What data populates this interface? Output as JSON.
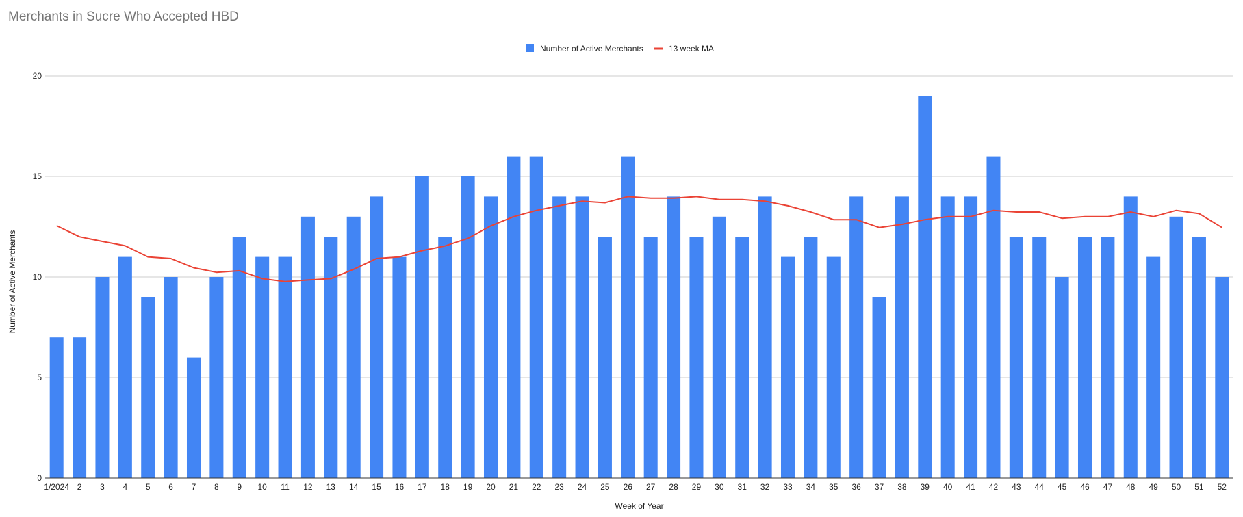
{
  "chart_data": {
    "type": "bar",
    "title": "Merchants in Sucre Who Accepted HBD",
    "xlabel": "Week of Year",
    "ylabel": "Number of Active Merchants",
    "ylim": [
      0,
      20
    ],
    "yticks": [
      0,
      5,
      10,
      15,
      20
    ],
    "grid": true,
    "legend_position": "top",
    "categories": [
      "1/2024",
      "2",
      "3",
      "4",
      "5",
      "6",
      "7",
      "8",
      "9",
      "10",
      "11",
      "12",
      "13",
      "14",
      "15",
      "16",
      "17",
      "18",
      "19",
      "20",
      "21",
      "22",
      "23",
      "24",
      "25",
      "26",
      "27",
      "28",
      "29",
      "30",
      "31",
      "32",
      "33",
      "34",
      "35",
      "36",
      "37",
      "38",
      "39",
      "40",
      "41",
      "42",
      "43",
      "44",
      "45",
      "46",
      "47",
      "48",
      "49",
      "50",
      "51",
      "52"
    ],
    "series": [
      {
        "name": "Number of Active Merchants",
        "type": "bar",
        "color": "#4285F4",
        "values": [
          7,
          7,
          10,
          11,
          9,
          10,
          6,
          10,
          12,
          11,
          11,
          13,
          12,
          13,
          14,
          11,
          15,
          12,
          15,
          14,
          16,
          16,
          14,
          14,
          12,
          16,
          12,
          14,
          12,
          13,
          12,
          14,
          11,
          12,
          11,
          14,
          9,
          14,
          19,
          14,
          14,
          16,
          12,
          12,
          10,
          12,
          12,
          14,
          11,
          13,
          12,
          10
        ]
      },
      {
        "name": "13 week MA",
        "type": "line",
        "color": "#EA4335",
        "values": [
          12.55,
          12.0,
          11.77,
          11.55,
          11.0,
          10.92,
          10.46,
          10.23,
          10.31,
          9.92,
          9.77,
          9.85,
          9.92,
          10.38,
          10.92,
          11.0,
          11.31,
          11.54,
          11.92,
          12.54,
          13.0,
          13.31,
          13.54,
          13.77,
          13.69,
          14.0,
          13.92,
          13.92,
          14.0,
          13.85,
          13.85,
          13.77,
          13.54,
          13.23,
          12.85,
          12.85,
          12.46,
          12.62,
          12.85,
          13.0,
          13.0,
          13.31,
          13.23,
          13.23,
          12.92,
          13.0,
          13.0,
          13.23,
          13.0,
          13.31,
          13.15,
          12.46
        ]
      }
    ]
  }
}
